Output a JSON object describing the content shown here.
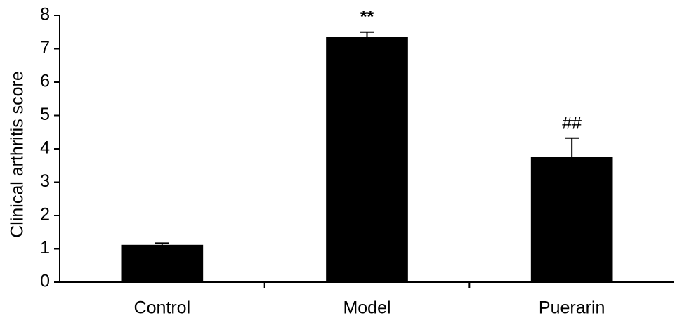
{
  "chart_data": {
    "type": "bar",
    "y_label": "Clinical arthritis score",
    "categories": [
      "Control",
      "Model",
      "Puerarin"
    ],
    "values": [
      1.12,
      7.35,
      3.75
    ],
    "errors": [
      0.05,
      0.15,
      0.57
    ],
    "color": "#000000",
    "annotations": [
      {
        "category": "Model",
        "text": "**"
      },
      {
        "category": "Puerarin",
        "text": "##"
      }
    ],
    "ylim": [
      0,
      8
    ],
    "yticks": [
      0,
      1,
      2,
      3,
      4,
      5,
      6,
      7,
      8
    ],
    "grid": false
  }
}
